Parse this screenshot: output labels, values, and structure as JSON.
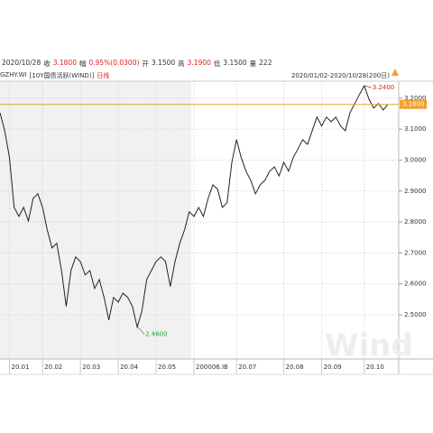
{
  "info_bar": {
    "date": "2020/10/28",
    "close_label": "收",
    "close": "3.1800",
    "change_label": "幅",
    "change": "0.95%(0.0300)",
    "open_label": "开",
    "open": "3.1500",
    "high_label": "高",
    "high": "3.1900",
    "low_label": "低",
    "low": "3.1500",
    "volume_label": "量",
    "volume": "222"
  },
  "watermark": "Wind",
  "chart_data": {
    "type": "line",
    "symbol": "GZHY.WI",
    "title": "[10Y国债活跃(WIND)]",
    "period": "日线",
    "range_label": "2020/01/02-2020/10/28(200日)",
    "categories": [
      null,
      null,
      "20.01",
      null,
      null,
      null,
      null,
      null,
      null,
      "20.02",
      null,
      null,
      null,
      null,
      null,
      null,
      null,
      "20.03",
      null,
      null,
      null,
      null,
      null,
      null,
      null,
      "20.04",
      null,
      null,
      null,
      null,
      null,
      null,
      null,
      "20.05",
      null,
      null,
      null,
      null,
      null,
      null,
      null,
      "200006.IB",
      null,
      null,
      null,
      null,
      null,
      null,
      null,
      null,
      "20.07",
      null,
      null,
      null,
      null,
      null,
      null,
      null,
      null,
      null,
      "20.08",
      null,
      null,
      null,
      null,
      null,
      null,
      null,
      "20.09",
      null,
      null,
      null,
      null,
      null,
      null,
      null,
      null,
      "20.10",
      null,
      null,
      null,
      null,
      null
    ],
    "values": [
      3.153,
      3.095,
      3.008,
      2.847,
      2.818,
      2.847,
      2.803,
      2.876,
      2.891,
      2.847,
      2.774,
      2.716,
      2.731,
      2.643,
      2.527,
      2.643,
      2.687,
      2.672,
      2.629,
      2.643,
      2.585,
      2.614,
      2.556,
      2.483,
      2.556,
      2.541,
      2.57,
      2.556,
      2.527,
      2.46,
      2.512,
      2.614,
      2.643,
      2.672,
      2.687,
      2.672,
      2.591,
      2.672,
      2.731,
      2.774,
      2.833,
      2.818,
      2.847,
      2.818,
      2.876,
      2.92,
      2.906,
      2.847,
      2.862,
      2.993,
      3.066,
      3.008,
      2.964,
      2.935,
      2.891,
      2.92,
      2.935,
      2.964,
      2.978,
      2.949,
      2.993,
      2.964,
      3.008,
      3.037,
      3.066,
      3.051,
      3.095,
      3.139,
      3.11,
      3.139,
      3.124,
      3.139,
      3.11,
      3.095,
      3.153,
      3.183,
      3.212,
      3.24,
      3.197,
      3.168,
      3.183,
      3.162,
      3.18
    ],
    "color": "#222222",
    "ylim": [
      2.357,
      3.255
    ],
    "yticks": [
      {
        "value": 2.5,
        "label": "2.5000"
      },
      {
        "value": 2.6,
        "label": "2.6000"
      },
      {
        "value": 2.7,
        "label": "2.7000"
      },
      {
        "value": 2.8,
        "label": "2.8000"
      },
      {
        "value": 2.9,
        "label": "2.9000"
      },
      {
        "value": 3.0,
        "label": "3.0000"
      },
      {
        "value": 3.1,
        "label": "3.1000"
      },
      {
        "value": 3.2,
        "label": "3.2000"
      }
    ],
    "grid": true,
    "last_price": {
      "value": 3.18,
      "label": "3.1800",
      "color": "#f0a030"
    },
    "annotations": [
      {
        "value": 3.24,
        "label": "3.2400",
        "color": "#e02020"
      },
      {
        "value": 2.46,
        "label": "2.4600",
        "color": "#20a040"
      }
    ]
  }
}
